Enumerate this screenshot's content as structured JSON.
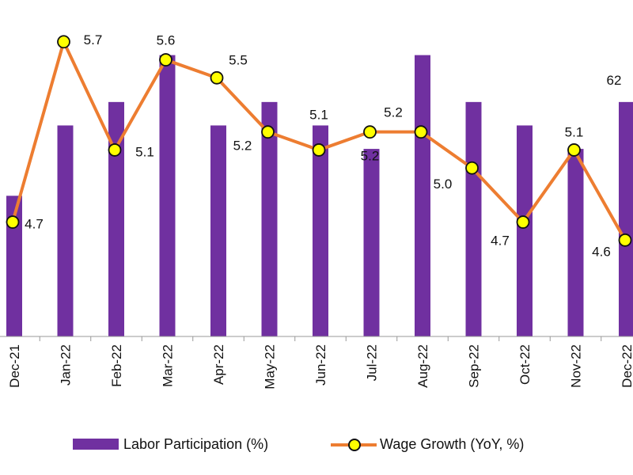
{
  "colors": {
    "bar": "#7030a0",
    "line": "#ed7d31",
    "marker_fill": "#ffff00",
    "marker_stroke": "#111111",
    "axis": "#999999"
  },
  "chart_data": {
    "type": "bar+line",
    "categories": [
      "Dec-21",
      "Jan-22",
      "Feb-22",
      "Mar-22",
      "Apr-22",
      "May-22",
      "Jun-22",
      "Jul-22",
      "Aug-22",
      "Sep-22",
      "Oct-22",
      "Nov-22",
      "Dec-22"
    ],
    "series": [
      {
        "name": "Labor Participation (%)",
        "type": "bar",
        "axis": "left",
        "values": [
          61.7,
          62.0,
          62.1,
          62.3,
          62.0,
          62.1,
          62.0,
          61.9,
          62.3,
          62.1,
          62.0,
          61.9,
          62.1
        ],
        "visible_labels": {
          "12": "62"
        }
      },
      {
        "name": "Wage Growth (YoY, %)",
        "type": "line",
        "axis": "right",
        "values": [
          4.7,
          5.7,
          5.1,
          5.6,
          5.5,
          5.2,
          5.1,
          5.2,
          5.2,
          5.0,
          4.7,
          5.1,
          4.6
        ],
        "labels": [
          "4.7",
          "5.7",
          "5.1",
          "5.6",
          "5.5",
          "5.2",
          "5.1",
          "5.2",
          "5.2",
          "5.0",
          "4.7",
          "5.1",
          "4.6"
        ]
      }
    ],
    "left_axis_range": [
      61.1,
      62.4
    ],
    "right_axis_range": [
      4.0,
      5.8
    ],
    "grid": false,
    "legend_position": "bottom"
  },
  "legend": {
    "bar_label": "Labor Participation (%)",
    "line_label": "Wage Growth (YoY, %)"
  }
}
